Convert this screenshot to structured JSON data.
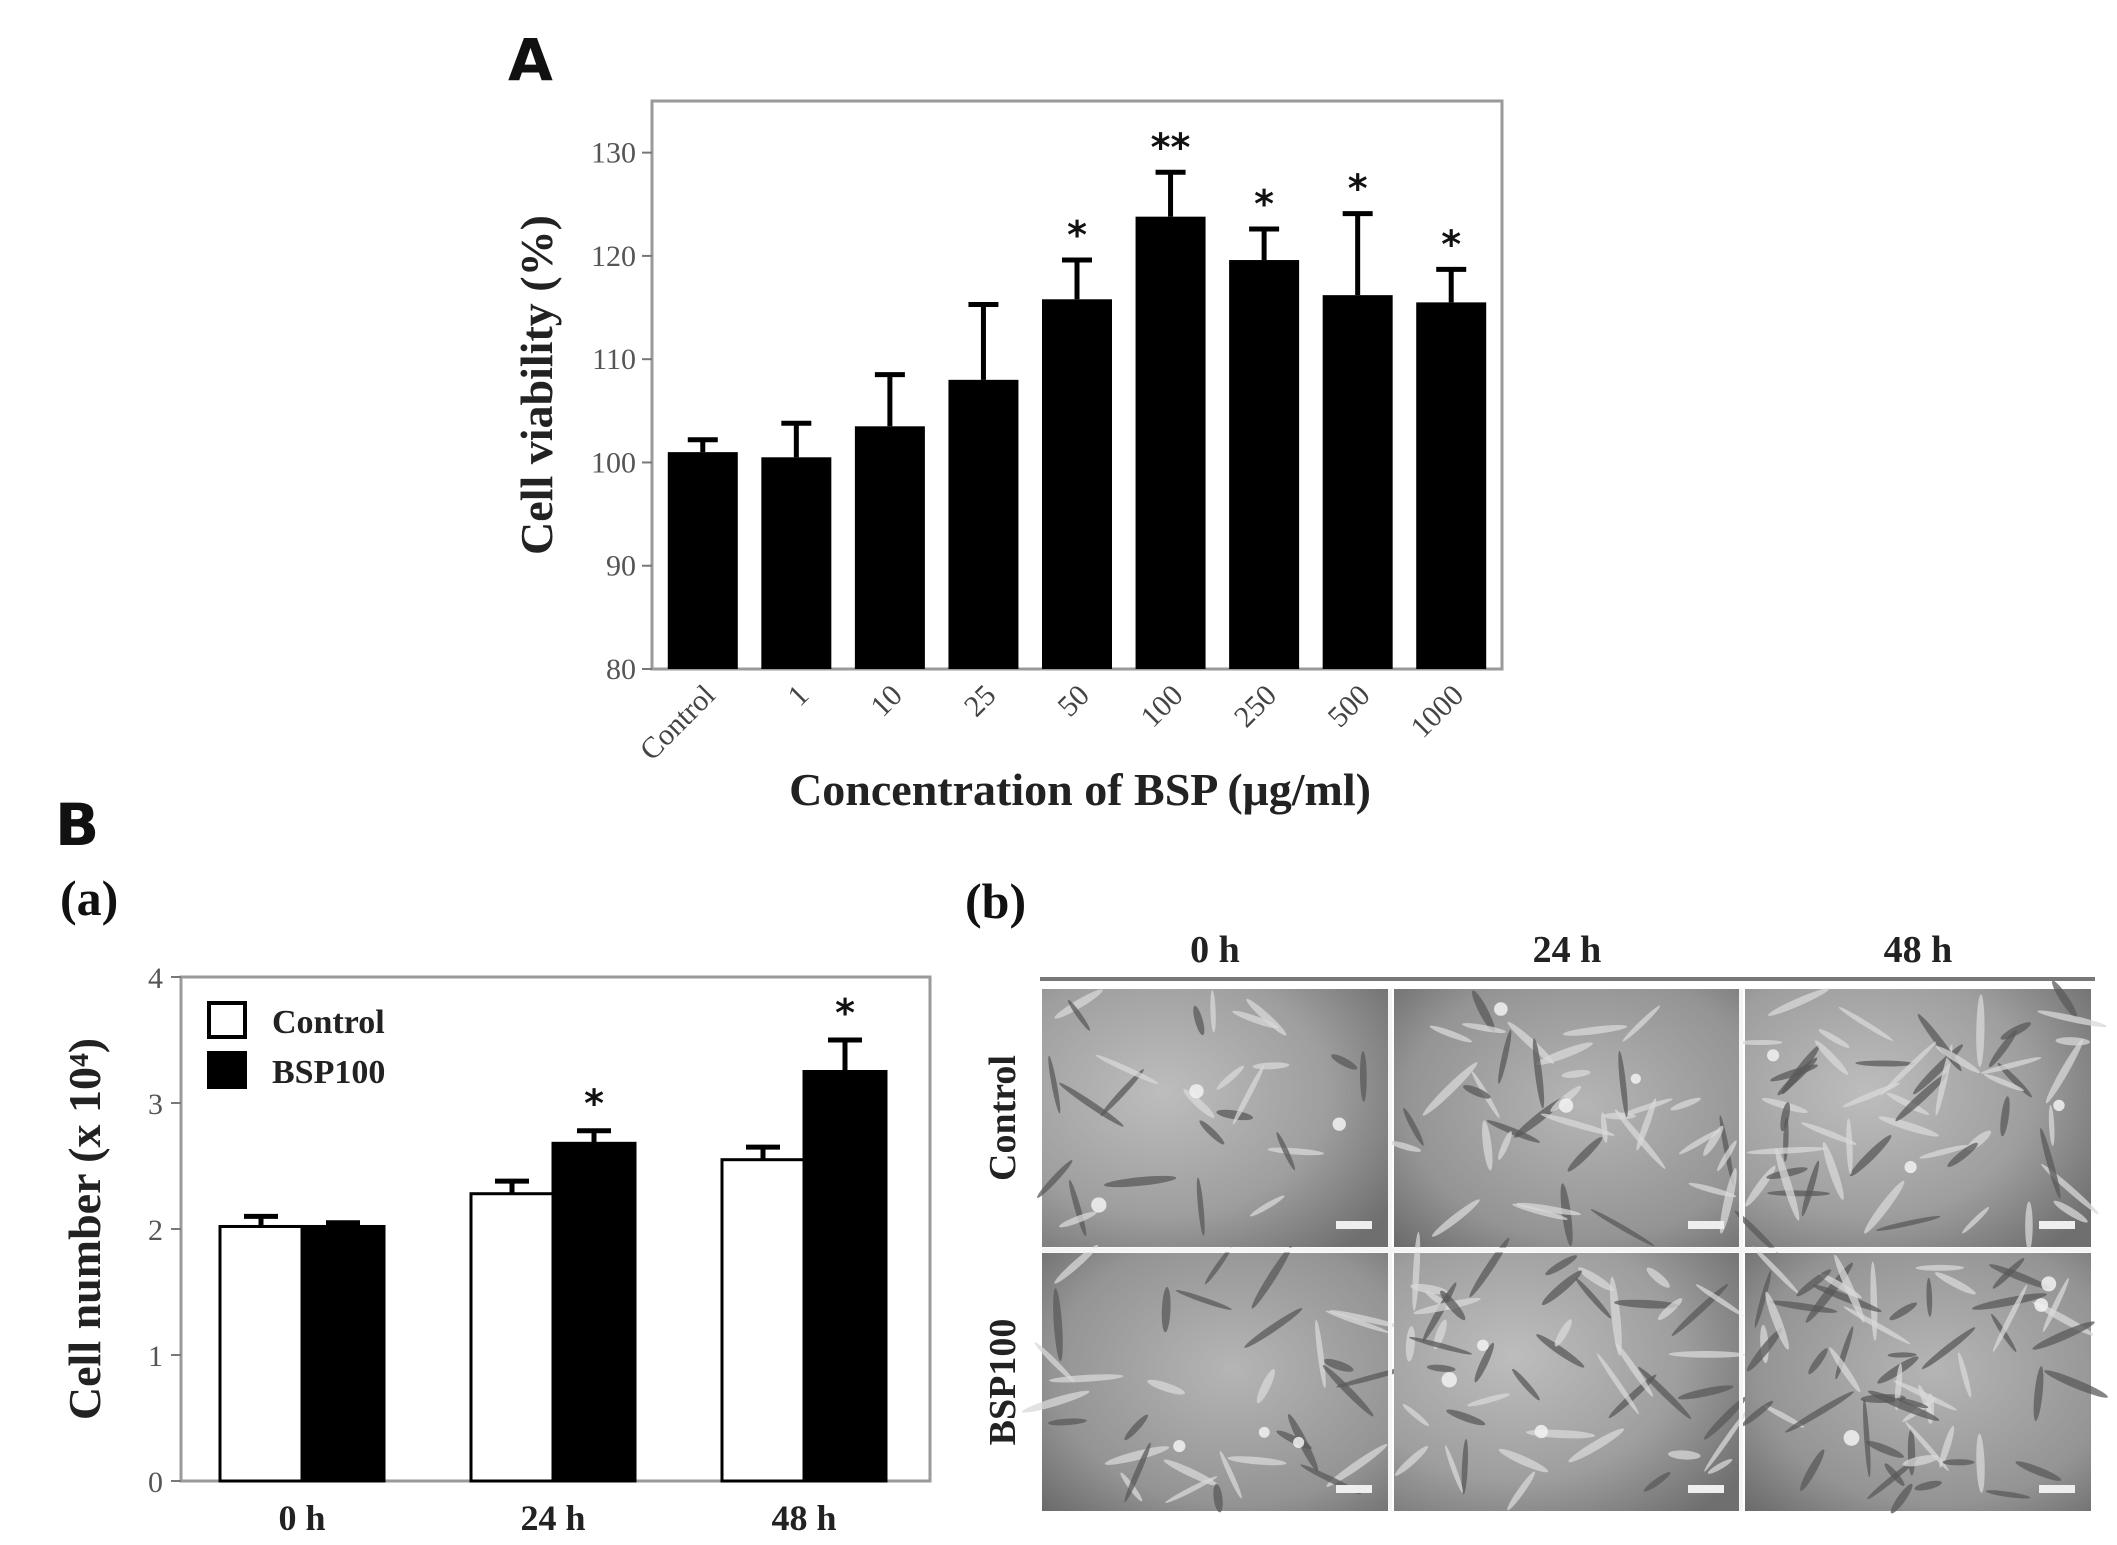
{
  "panels": {
    "A": "A",
    "B": "B",
    "Ba": "(a)",
    "Bb": "(b)"
  },
  "chart_data": [
    {
      "id": "A",
      "type": "bar",
      "title": "",
      "xlabel": "Concentration of BSP (μg/ml)",
      "ylabel": "Cell viability (%)",
      "ylim": [
        80,
        135
      ],
      "yticks": [
        "80",
        "90",
        "100",
        "110",
        "120",
        "130"
      ],
      "categories": [
        "Control",
        "1",
        "10",
        "25",
        "50",
        "100",
        "250",
        "500",
        "1000"
      ],
      "values": [
        101,
        100.5,
        103.5,
        108,
        115.8,
        123.8,
        119.6,
        116.2,
        115.5
      ],
      "errors": [
        1.2,
        3.3,
        5,
        7.3,
        3.8,
        4.3,
        3,
        7.9,
        3.2
      ],
      "significance": [
        "",
        "",
        "",
        "",
        "*",
        "**",
        "*",
        "*",
        "*"
      ],
      "bar_color": "#000000"
    },
    {
      "id": "Ba",
      "type": "bar",
      "title": "",
      "xlabel": "",
      "ylabel": "Cell number (x 10⁴)",
      "ylim": [
        0,
        4
      ],
      "yticks": [
        "0",
        "1",
        "2",
        "3",
        "4"
      ],
      "categories": [
        "0 h",
        "24 h",
        "48 h"
      ],
      "series": [
        {
          "name": "Control",
          "color": "#ffffff",
          "values": [
            2.02,
            2.28,
            2.55
          ],
          "errors": [
            0.08,
            0.1,
            0.1
          ],
          "significance": [
            "",
            "",
            ""
          ]
        },
        {
          "name": "BSP100",
          "color": "#000000",
          "values": [
            2.02,
            2.68,
            3.25
          ],
          "errors": [
            0.03,
            0.1,
            0.25
          ],
          "significance": [
            "",
            "*",
            "*"
          ]
        }
      ],
      "legend": "top-left"
    }
  ],
  "micrographs": {
    "columns": [
      "0 h",
      "24 h",
      "48 h"
    ],
    "rows": [
      "Control",
      "BSP100"
    ]
  }
}
